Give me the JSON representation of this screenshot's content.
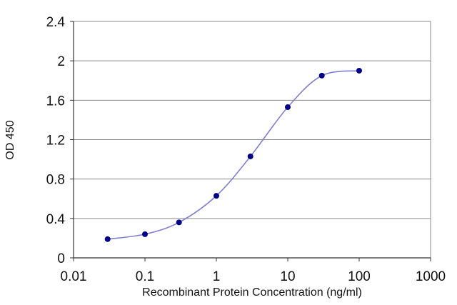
{
  "chart_data": {
    "type": "line",
    "title": "",
    "xlabel": "Recombinant Protein Concentration (ng/ml)",
    "ylabel": "OD 450",
    "x_scale": "log",
    "xlim": [
      0.01,
      1000
    ],
    "ylim": [
      0,
      2.4
    ],
    "x_ticks": [
      {
        "value": 0.01,
        "label": "0.01"
      },
      {
        "value": 0.1,
        "label": "0.1"
      },
      {
        "value": 1,
        "label": "1"
      },
      {
        "value": 10,
        "label": "10"
      },
      {
        "value": 100,
        "label": "100"
      },
      {
        "value": 1000,
        "label": "1000"
      }
    ],
    "y_ticks": [
      {
        "value": 0,
        "label": "0"
      },
      {
        "value": 0.4,
        "label": "0.4"
      },
      {
        "value": 0.8,
        "label": "0.8"
      },
      {
        "value": 1.2,
        "label": "1.2"
      },
      {
        "value": 1.6,
        "label": "1.6"
      },
      {
        "value": 2,
        "label": "2"
      },
      {
        "value": 2.4,
        "label": "2.4"
      }
    ],
    "grid": "horizontal",
    "legend": "none",
    "series": [
      {
        "color": "#8080d0",
        "marker_color": "#00008b",
        "points": [
          {
            "x": 0.03,
            "y": 0.19
          },
          {
            "x": 0.1,
            "y": 0.24
          },
          {
            "x": 0.3,
            "y": 0.36
          },
          {
            "x": 1,
            "y": 0.63
          },
          {
            "x": 3,
            "y": 1.03
          },
          {
            "x": 10,
            "y": 1.53
          },
          {
            "x": 30,
            "y": 1.85
          },
          {
            "x": 100,
            "y": 1.9
          }
        ]
      }
    ]
  }
}
